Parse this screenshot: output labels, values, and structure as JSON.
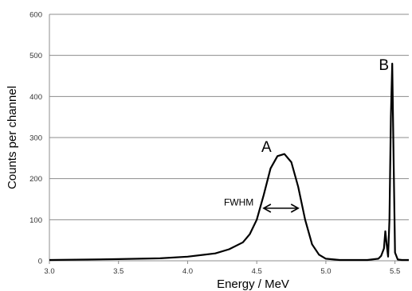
{
  "chart_data": {
    "type": "line",
    "title": "",
    "xlabel": "Energy / MeV",
    "ylabel": "Counts per channel",
    "xlim": [
      3.0,
      5.6
    ],
    "ylim": [
      0,
      600
    ],
    "x_ticks": [
      "3.0",
      "3.5",
      "4.0",
      "4.5",
      "5.0",
      "5.5"
    ],
    "y_ticks": [
      "0",
      "100",
      "200",
      "300",
      "400",
      "500",
      "600"
    ],
    "grid": "horizontal",
    "legend": "none",
    "line_color": "#000000",
    "series": [
      {
        "x": [
          3.0,
          3.5,
          3.8,
          4.0,
          4.2,
          4.3,
          4.4,
          4.45,
          4.5,
          4.55,
          4.6,
          4.65,
          4.7,
          4.75,
          4.8,
          4.85,
          4.9,
          4.95,
          5.0,
          5.1,
          5.2,
          5.3,
          5.38,
          5.4,
          5.42,
          5.43,
          5.44,
          5.45,
          5.46,
          5.47,
          5.48,
          5.49,
          5.5,
          5.52,
          5.55,
          5.6
        ],
        "y": [
          2,
          4,
          6,
          10,
          18,
          28,
          45,
          65,
          100,
          160,
          225,
          255,
          260,
          240,
          180,
          100,
          40,
          15,
          5,
          2,
          2,
          2,
          5,
          12,
          30,
          72,
          40,
          10,
          100,
          350,
          480,
          250,
          20,
          3,
          2,
          2
        ]
      }
    ],
    "annotations": [
      {
        "text": "A",
        "x": 4.57,
        "y": 265
      },
      {
        "text": "B",
        "x": 5.42,
        "y": 465
      },
      {
        "text": "FWHM",
        "x": 4.37,
        "y": 135,
        "span": [
          4.55,
          4.8
        ],
        "at_y": 128
      }
    ]
  }
}
